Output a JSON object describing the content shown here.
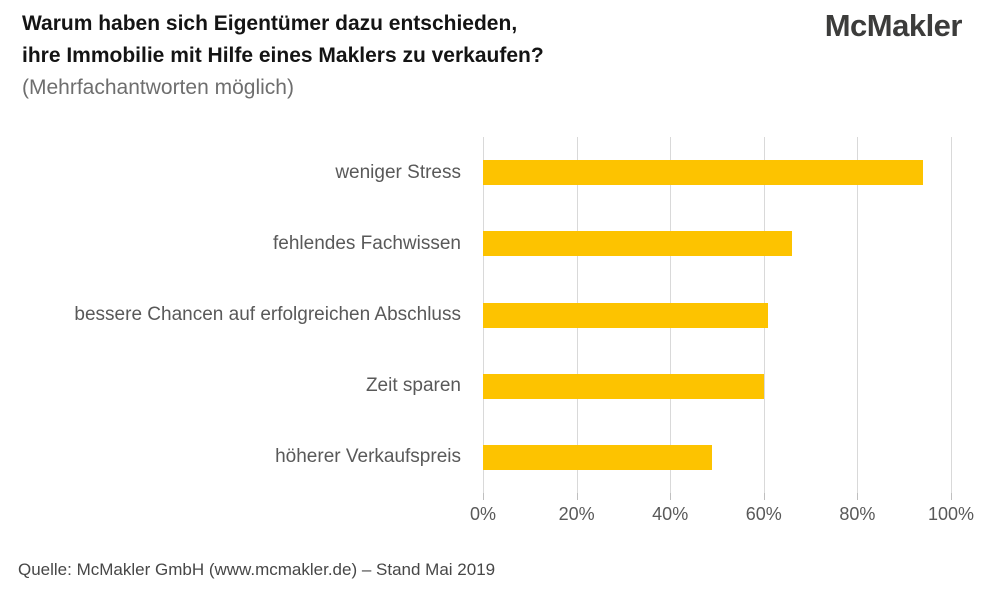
{
  "header": {
    "title_line1": "Warum haben sich Eigentümer dazu entschieden,",
    "title_line2": "ihre Immobilie mit Hilfe eines Maklers zu verkaufen?",
    "subtitle": "(Mehrfachantworten möglich)",
    "logo_text": "McMakler"
  },
  "chart_data": {
    "type": "bar",
    "orientation": "horizontal",
    "title": "Warum haben sich Eigentümer dazu entschieden, ihre Immobilie mit Hilfe eines Maklers zu verkaufen?",
    "subtitle": "(Mehrfachantworten möglich)",
    "categories": [
      "weniger Stress",
      "fehlendes Fachwissen",
      "bessere Chancen auf erfolgreichen Abschluss",
      "Zeit sparen",
      "höherer Verkaufspreis"
    ],
    "values": [
      94,
      66,
      61,
      60,
      49
    ],
    "unit": "%",
    "xlim": [
      0,
      100
    ],
    "x_tick_values": [
      0,
      20,
      40,
      60,
      80,
      100
    ],
    "x_tick_labels": [
      "0%",
      "20%",
      "40%",
      "60%",
      "80%",
      "100%"
    ],
    "grid": true,
    "legend": false,
    "colors": {
      "bar": "#FDC300",
      "gridline": "#D9D9D9",
      "tick_mark": "#BFBFBF",
      "category_label": "#595959",
      "axis_label": "#595959"
    }
  },
  "footer": {
    "source": "Quelle: McMakler GmbH (www.mcmakler.de) – Stand Mai 2019"
  }
}
